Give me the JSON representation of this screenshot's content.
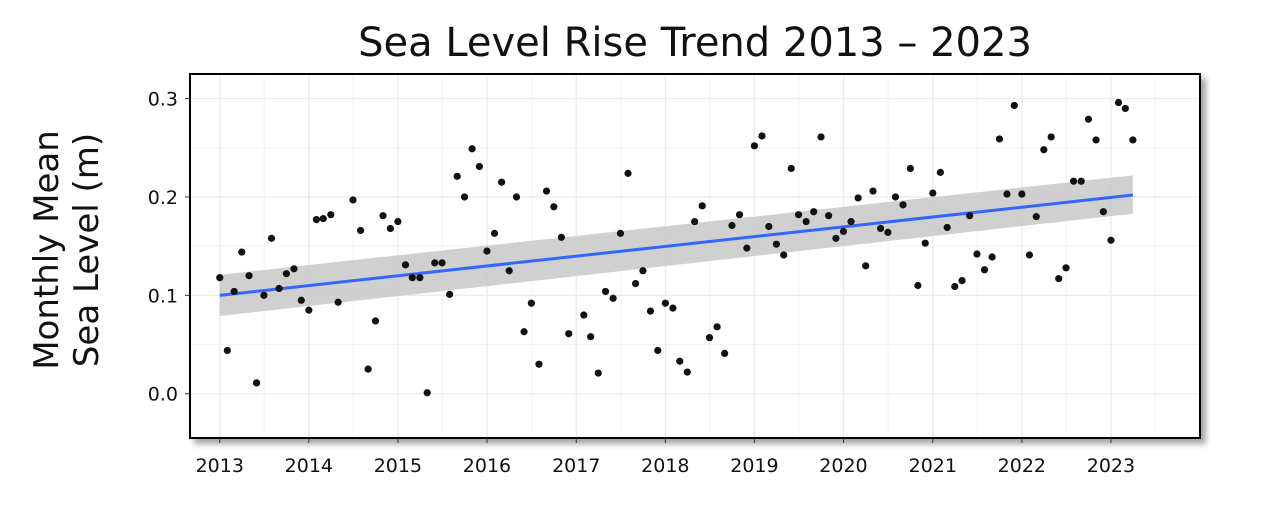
{
  "chart_data": {
    "type": "scatter",
    "title": "Sea Level Rise Trend 2013 – 2023",
    "xlabel": "",
    "ylabel_lines": [
      "Monthly Mean",
      "Sea Level (m)"
    ],
    "x_ticks": [
      "2013",
      "2014",
      "2015",
      "2016",
      "2017",
      "2018",
      "2019",
      "2020",
      "2021",
      "2022",
      "2023"
    ],
    "y_ticks": [
      "0.0",
      "0.1",
      "0.2",
      "0.3"
    ],
    "xlim": [
      "2012-09-01",
      "2024-01-01"
    ],
    "ylim": [
      -0.045,
      0.325
    ],
    "grid": true,
    "colors": {
      "points": "#111111",
      "trend": "#3366ff",
      "band": "#c8c8c8",
      "grid": "#ebebeb"
    },
    "trend": {
      "x": [
        "2013-01-01",
        "2023-04-01"
      ],
      "y": [
        0.1,
        0.202
      ],
      "ci_lower": [
        0.079,
        0.183
      ],
      "ci_upper": [
        0.121,
        0.222
      ]
    },
    "series": [
      {
        "x": [
          "2013-01-01",
          "2013-02-01",
          "2013-03-01",
          "2013-04-01",
          "2013-05-01",
          "2013-06-01",
          "2013-07-01",
          "2013-08-01",
          "2013-09-01",
          "2013-10-01",
          "2013-11-01",
          "2013-12-01",
          "2014-01-01",
          "2014-02-01",
          "2014-03-01",
          "2014-04-01",
          "2014-05-01",
          "2014-07-01",
          "2014-08-01",
          "2014-09-01",
          "2014-10-01",
          "2014-11-01",
          "2014-12-01",
          "2015-01-01",
          "2015-02-01",
          "2015-03-01",
          "2015-04-01",
          "2015-05-01",
          "2015-06-01",
          "2015-07-01",
          "2015-08-01",
          "2015-09-01",
          "2015-10-01",
          "2015-11-01",
          "2015-12-01",
          "2016-01-01",
          "2016-02-01",
          "2016-03-01",
          "2016-04-01",
          "2016-05-01",
          "2016-06-01",
          "2016-07-01",
          "2016-08-01",
          "2016-09-01",
          "2016-10-01",
          "2016-11-01",
          "2016-12-01",
          "2017-02-01",
          "2017-03-01",
          "2017-04-01",
          "2017-05-01",
          "2017-06-01",
          "2017-07-01",
          "2017-08-01",
          "2017-09-01",
          "2017-10-01",
          "2017-11-01",
          "2017-12-01",
          "2018-01-01",
          "2018-02-01",
          "2018-03-01",
          "2018-04-01",
          "2018-05-01",
          "2018-06-01",
          "2018-07-01",
          "2018-08-01",
          "2018-09-01",
          "2018-10-01",
          "2018-11-01",
          "2018-12-01",
          "2019-01-01",
          "2019-02-01",
          "2019-03-01",
          "2019-04-01",
          "2019-05-01",
          "2019-06-01",
          "2019-07-01",
          "2019-08-01",
          "2019-09-01",
          "2019-10-01",
          "2019-11-01",
          "2019-12-01",
          "2020-01-01",
          "2020-02-01",
          "2020-03-01",
          "2020-04-01",
          "2020-05-01",
          "2020-06-01",
          "2020-07-01",
          "2020-08-01",
          "2020-09-01",
          "2020-10-01",
          "2020-11-01",
          "2020-12-01",
          "2021-01-01",
          "2021-02-01",
          "2021-03-01",
          "2021-04-01",
          "2021-05-01",
          "2021-06-01",
          "2021-07-01",
          "2021-08-01",
          "2021-09-01",
          "2021-10-01",
          "2021-11-01",
          "2021-12-01",
          "2022-01-01",
          "2022-02-01",
          "2022-03-01",
          "2022-04-01",
          "2022-05-01",
          "2022-06-01",
          "2022-07-01",
          "2022-08-01",
          "2022-09-01",
          "2022-10-01",
          "2022-11-01",
          "2022-12-01",
          "2023-01-01",
          "2023-02-01",
          "2023-03-01",
          "2023-04-01"
        ],
        "y": [
          0.118,
          0.044,
          0.104,
          0.144,
          0.12,
          0.011,
          0.1,
          0.158,
          0.107,
          0.122,
          0.127,
          0.095,
          0.085,
          0.177,
          0.178,
          0.182,
          0.093,
          0.197,
          0.166,
          0.025,
          0.074,
          0.181,
          0.168,
          0.175,
          0.131,
          0.118,
          0.118,
          0.001,
          0.133,
          0.133,
          0.101,
          0.221,
          0.2,
          0.249,
          0.231,
          0.145,
          0.163,
          0.215,
          0.125,
          0.2,
          0.063,
          0.092,
          0.03,
          0.206,
          0.19,
          0.159,
          0.061,
          0.08,
          0.058,
          0.021,
          0.104,
          0.097,
          0.163,
          0.224,
          0.112,
          0.125,
          0.084,
          0.044,
          0.092,
          0.087,
          0.033,
          0.022,
          0.175,
          0.191,
          0.057,
          0.068,
          0.041,
          0.171,
          0.182,
          0.148,
          0.252,
          0.262,
          0.17,
          0.152,
          0.141,
          0.229,
          0.182,
          0.175,
          0.185,
          0.261,
          0.181,
          0.158,
          0.165,
          0.175,
          0.199,
          0.13,
          0.206,
          0.168,
          0.164,
          0.2,
          0.192,
          0.229,
          0.11,
          0.153,
          0.204,
          0.225,
          0.169,
          0.109,
          0.115,
          0.181,
          0.142,
          0.126,
          0.139,
          0.259,
          0.203,
          0.293,
          0.203,
          0.141,
          0.18,
          0.248,
          0.261,
          0.117,
          0.128,
          0.216,
          0.216,
          0.279,
          0.258,
          0.185,
          0.156,
          0.296,
          0.29,
          0.258
        ]
      }
    ]
  }
}
